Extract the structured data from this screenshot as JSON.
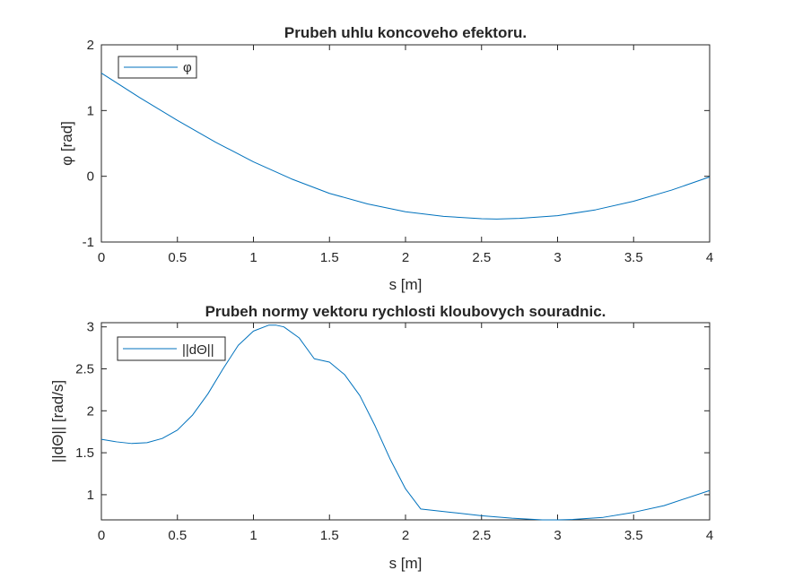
{
  "chart_data": [
    {
      "type": "line",
      "title": "Prubeh uhlu koncoveho efektoru.",
      "xlabel": "s [m]",
      "ylabel": "φ [rad]",
      "xlim": [
        0,
        4
      ],
      "ylim": [
        -1,
        2
      ],
      "xticks": [
        "0",
        "0.5",
        "1",
        "1.5",
        "2",
        "2.5",
        "3",
        "3.5",
        "4"
      ],
      "yticks": [
        "-1",
        "0",
        "1",
        "2"
      ],
      "grid": false,
      "legend_position": "top-left",
      "series": [
        {
          "name": "φ",
          "color": "#0072bd",
          "x": [
            0,
            0.25,
            0.5,
            0.75,
            1.0,
            1.25,
            1.5,
            1.75,
            2.0,
            2.25,
            2.5,
            2.6,
            2.75,
            3.0,
            3.25,
            3.5,
            3.75,
            4.0
          ],
          "y": [
            1.57,
            1.2,
            0.85,
            0.52,
            0.22,
            -0.04,
            -0.26,
            -0.42,
            -0.54,
            -0.61,
            -0.645,
            -0.65,
            -0.64,
            -0.6,
            -0.51,
            -0.38,
            -0.21,
            -0.01
          ]
        }
      ]
    },
    {
      "type": "line",
      "title": "Prubeh normy vektoru rychlosti kloubovych souradnic.",
      "xlabel": "s [m]",
      "ylabel": "||dΘ|| [rad/s]",
      "xlim": [
        0,
        4
      ],
      "ylim": [
        0.7,
        3.05
      ],
      "xticks": [
        "0",
        "0.5",
        "1",
        "1.5",
        "2",
        "2.5",
        "3",
        "3.5",
        "4"
      ],
      "yticks": [
        "1",
        "1.5",
        "2",
        "2.5",
        "3"
      ],
      "grid": false,
      "legend_position": "top-left",
      "series": [
        {
          "name": "||dΘ||",
          "color": "#0072bd",
          "x": [
            0,
            0.1,
            0.2,
            0.3,
            0.4,
            0.5,
            0.6,
            0.7,
            0.8,
            0.9,
            1.0,
            1.1,
            1.15,
            1.2,
            1.3,
            1.4,
            1.45,
            1.5,
            1.6,
            1.7,
            1.8,
            1.9,
            2.0,
            2.1,
            2.3,
            2.5,
            2.7,
            2.9,
            3.0,
            3.1,
            3.3,
            3.5,
            3.7,
            4.0
          ],
          "y": [
            1.66,
            1.63,
            1.61,
            1.62,
            1.67,
            1.77,
            1.95,
            2.2,
            2.5,
            2.78,
            2.95,
            3.02,
            3.02,
            3.0,
            2.87,
            2.62,
            2.6,
            2.58,
            2.43,
            2.18,
            1.82,
            1.42,
            1.07,
            0.83,
            0.79,
            0.75,
            0.72,
            0.7,
            0.7,
            0.705,
            0.73,
            0.79,
            0.87,
            1.05
          ]
        }
      ]
    }
  ]
}
